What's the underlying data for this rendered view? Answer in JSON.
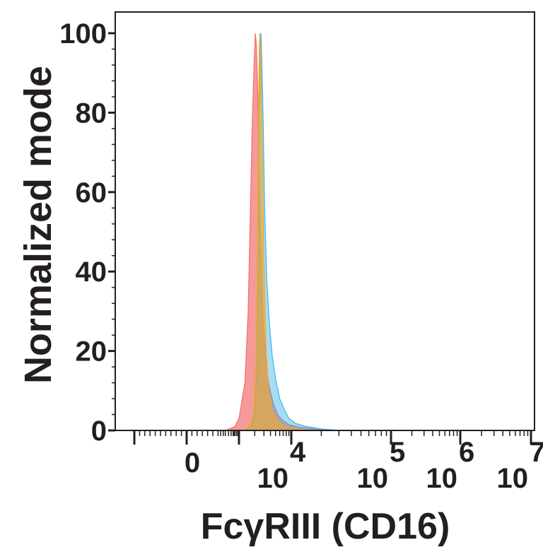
{
  "chart_data": {
    "type": "area",
    "title": "",
    "xlabel": "FcγRIII (CD16)",
    "ylabel": "Normalized mode",
    "x_scale": "biexponential",
    "xlim": [
      -100,
      10000000
    ],
    "ylim": [
      0,
      100
    ],
    "grid": false,
    "legend": "none",
    "y_ticks": [
      {
        "value": 0,
        "label": "0"
      },
      {
        "value": 20,
        "label": "20"
      },
      {
        "value": 40,
        "label": "40"
      },
      {
        "value": 60,
        "label": "60"
      },
      {
        "value": 80,
        "label": "80"
      },
      {
        "value": 100,
        "label": "100"
      }
    ],
    "x_ticks": [
      {
        "value": 0,
        "label": "0",
        "base": "",
        "exp": ""
      },
      {
        "value": 10000,
        "label": "",
        "base": "10",
        "exp": "4"
      },
      {
        "value": 100000,
        "label": "",
        "base": "10",
        "exp": "5"
      },
      {
        "value": 1000000,
        "label": "",
        "base": "10",
        "exp": "6"
      },
      {
        "value": 10000000,
        "label": "",
        "base": "10",
        "exp": "7"
      }
    ],
    "series": [
      {
        "color": "#f26d6d",
        "fill_opacity": 0.7,
        "points": [
          [
            300,
            0
          ],
          [
            700,
            1
          ],
          [
            1000,
            3
          ],
          [
            1300,
            12
          ],
          [
            1500,
            30
          ],
          [
            1650,
            55
          ],
          [
            1800,
            78
          ],
          [
            1950,
            93
          ],
          [
            2050,
            100
          ],
          [
            2150,
            97
          ],
          [
            2250,
            88
          ],
          [
            2400,
            70
          ],
          [
            2600,
            48
          ],
          [
            2900,
            28
          ],
          [
            3300,
            16
          ],
          [
            3800,
            11
          ],
          [
            4500,
            7
          ],
          [
            5500,
            4
          ],
          [
            7000,
            2.5
          ],
          [
            9000,
            1.5
          ],
          [
            12000,
            0.8
          ],
          [
            18000,
            0.4
          ],
          [
            30000,
            0
          ]
        ]
      },
      {
        "color": "#3cb4e6",
        "fill_opacity": 0.45,
        "points": [
          [
            1300,
            0
          ],
          [
            1700,
            1
          ],
          [
            2000,
            4
          ],
          [
            2200,
            15
          ],
          [
            2350,
            45
          ],
          [
            2450,
            78
          ],
          [
            2550,
            97
          ],
          [
            2620,
            100
          ],
          [
            2750,
            92
          ],
          [
            2900,
            78
          ],
          [
            3100,
            55
          ],
          [
            3400,
            38
          ],
          [
            3800,
            27
          ],
          [
            4300,
            19
          ],
          [
            5000,
            13
          ],
          [
            6000,
            8
          ],
          [
            7500,
            5
          ],
          [
            9000,
            3
          ],
          [
            11000,
            1.8
          ],
          [
            14000,
            1
          ],
          [
            20000,
            0.4
          ],
          [
            30000,
            0
          ]
        ]
      },
      {
        "color": "#f5a623",
        "fill_opacity": 0.6,
        "points": [
          [
            1200,
            0
          ],
          [
            1600,
            1
          ],
          [
            1900,
            4
          ],
          [
            2100,
            15
          ],
          [
            2250,
            45
          ],
          [
            2350,
            80
          ],
          [
            2450,
            97
          ],
          [
            2520,
            100
          ],
          [
            2650,
            90
          ],
          [
            2800,
            70
          ],
          [
            3000,
            42
          ],
          [
            3300,
            20
          ],
          [
            3700,
            10
          ],
          [
            4300,
            5
          ],
          [
            5200,
            3
          ],
          [
            6500,
            1.5
          ],
          [
            9000,
            0.6
          ],
          [
            14000,
            0
          ]
        ]
      }
    ]
  }
}
